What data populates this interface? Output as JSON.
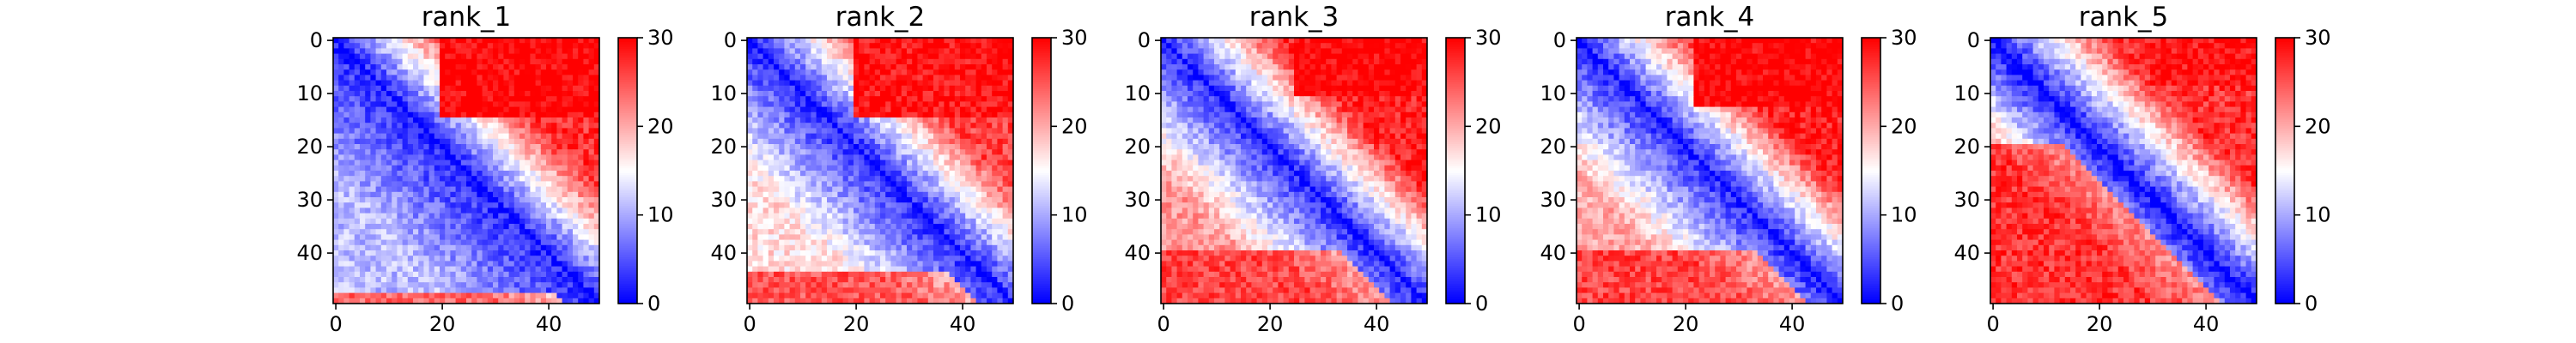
{
  "chart_data": [
    {
      "type": "heatmap",
      "title": "rank_1",
      "rows": 50,
      "cols": 50,
      "x_ticks": [
        0,
        20,
        40
      ],
      "y_ticks": [
        0,
        10,
        20,
        30,
        40
      ],
      "colorbar": {
        "min": 0,
        "max": 30,
        "ticks": [
          0,
          10,
          20,
          30
        ],
        "cmap": "bwr"
      },
      "profile": {
        "near_blue": 2,
        "far_upper": 27,
        "far_lower": 11,
        "lower_cluster_rows": [
          48,
          49
        ],
        "lower_cluster_value": 24,
        "upper_block_rows": [
          0,
          14
        ],
        "upper_block_cols": [
          20,
          49
        ],
        "upper_block_value": 30
      }
    },
    {
      "type": "heatmap",
      "title": "rank_2",
      "rows": 50,
      "cols": 50,
      "x_ticks": [
        0,
        20,
        40
      ],
      "y_ticks": [
        0,
        10,
        20,
        30,
        40
      ],
      "colorbar": {
        "min": 0,
        "max": 30,
        "ticks": [
          0,
          10,
          20,
          30
        ],
        "cmap": "bwr"
      },
      "profile": {
        "near_blue": 2,
        "far_upper": 26,
        "far_lower": 17,
        "lower_cluster_rows": [
          44,
          49
        ],
        "lower_cluster_value": 25,
        "upper_block_rows": [
          0,
          14
        ],
        "upper_block_cols": [
          20,
          49
        ],
        "upper_block_value": 29
      }
    },
    {
      "type": "heatmap",
      "title": "rank_3",
      "rows": 50,
      "cols": 50,
      "x_ticks": [
        0,
        20,
        40
      ],
      "y_ticks": [
        0,
        10,
        20,
        30,
        40
      ],
      "colorbar": {
        "min": 0,
        "max": 30,
        "ticks": [
          0,
          10,
          20,
          30
        ],
        "cmap": "bwr"
      },
      "profile": {
        "near_blue": 2,
        "far_upper": 28,
        "far_lower": 21,
        "lower_cluster_rows": [
          40,
          49
        ],
        "lower_cluster_value": 26,
        "upper_block_rows": [
          0,
          10
        ],
        "upper_block_cols": [
          25,
          49
        ],
        "upper_block_value": 30
      }
    },
    {
      "type": "heatmap",
      "title": "rank_4",
      "rows": 50,
      "cols": 50,
      "x_ticks": [
        0,
        20,
        40
      ],
      "y_ticks": [
        0,
        10,
        20,
        30,
        40
      ],
      "colorbar": {
        "min": 0,
        "max": 30,
        "ticks": [
          0,
          10,
          20,
          30
        ],
        "cmap": "bwr"
      },
      "profile": {
        "near_blue": 2,
        "far_upper": 28,
        "far_lower": 20,
        "lower_cluster_rows": [
          40,
          49
        ],
        "lower_cluster_value": 26,
        "upper_block_rows": [
          0,
          12
        ],
        "upper_block_cols": [
          22,
          49
        ],
        "upper_block_value": 30
      }
    },
    {
      "type": "heatmap",
      "title": "rank_5",
      "rows": 50,
      "cols": 50,
      "x_ticks": [
        0,
        20,
        40
      ],
      "y_ticks": [
        0,
        10,
        20,
        30,
        40
      ],
      "colorbar": {
        "min": 0,
        "max": 30,
        "ticks": [
          0,
          10,
          20,
          30
        ],
        "cmap": "bwr"
      },
      "profile": {
        "near_blue": 1,
        "far_upper": 27,
        "far_lower": 26,
        "lower_cluster_rows": [
          20,
          49
        ],
        "lower_cluster_value": 27,
        "upper_block_rows": [
          0,
          8
        ],
        "upper_block_cols": [
          30,
          49
        ],
        "upper_block_value": 29
      }
    }
  ]
}
